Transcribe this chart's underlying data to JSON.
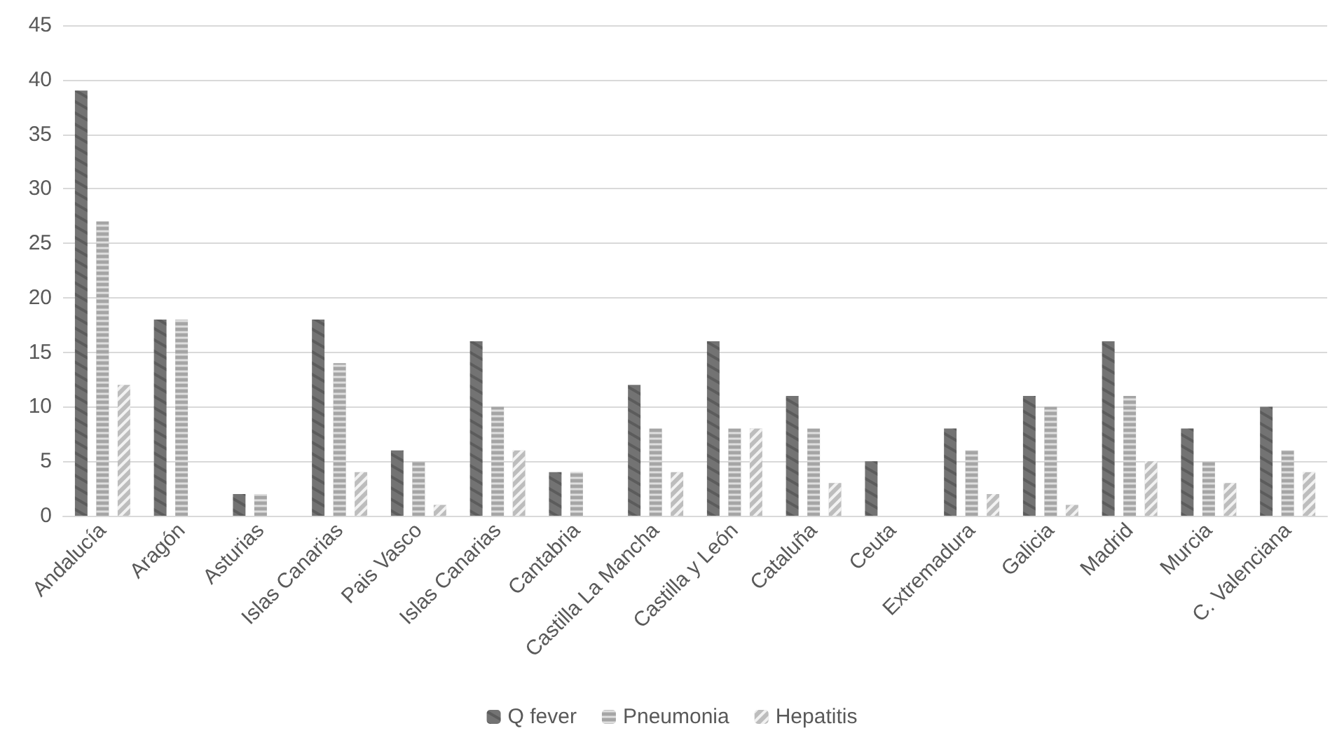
{
  "chart_data": {
    "type": "bar",
    "categories": [
      "Andalucía",
      "Aragón",
      "Asturias",
      "Islas Canarias",
      "Pais Vasco",
      "Islas Canarias",
      "Cantabria",
      "Castilla La Mancha",
      "Castilla y León",
      "Cataluña",
      "Ceuta",
      "Extremadura",
      "Galicia",
      "Madrid",
      "Murcia",
      "C. Valenciana"
    ],
    "series": [
      {
        "name": "Q fever",
        "color": "#737373",
        "values": [
          39,
          18,
          2,
          18,
          6,
          16,
          4,
          12,
          16,
          11,
          5,
          8,
          11,
          16,
          8,
          10
        ]
      },
      {
        "name": "Pneumonia",
        "color": "#a5a5a5",
        "values": [
          27,
          18,
          2,
          14,
          5,
          10,
          4,
          8,
          8,
          8,
          0,
          6,
          10,
          11,
          5,
          6
        ]
      },
      {
        "name": "Hepatitis",
        "color": "#bdbdbd",
        "values": [
          12,
          0,
          0,
          4,
          1,
          6,
          0,
          4,
          8,
          3,
          0,
          2,
          1,
          5,
          3,
          4
        ]
      }
    ],
    "ylim": [
      0,
      45
    ],
    "yticks": [
      0,
      5,
      10,
      15,
      20,
      25,
      30,
      35,
      40,
      45
    ],
    "grid": "y",
    "legend": "bottom"
  }
}
